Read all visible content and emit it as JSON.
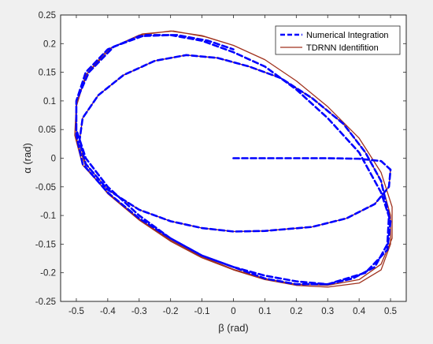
{
  "chart_data": {
    "type": "line",
    "title": "",
    "xlabel": "β (rad)",
    "ylabel": "α (rad)",
    "xlim": [
      -0.55,
      0.55
    ],
    "ylim": [
      -0.25,
      0.25
    ],
    "xticks": [
      -0.5,
      -0.4,
      -0.3,
      -0.2,
      -0.1,
      0,
      0.1,
      0.2,
      0.3,
      0.4,
      0.5
    ],
    "xtick_labels": [
      "-0.5",
      "-0.4",
      "-0.3",
      "-0.2",
      "-0.1",
      "0",
      "0.1",
      "0.2",
      "0.3",
      "0.4",
      "0.5"
    ],
    "yticks": [
      -0.25,
      -0.2,
      -0.15,
      -0.1,
      -0.05,
      0,
      0.05,
      0.1,
      0.15,
      0.2,
      0.25
    ],
    "ytick_labels": [
      "-0.25",
      "-0.2",
      "-0.15",
      "-0.1",
      "-0.05",
      "0",
      "0.05",
      "0.1",
      "0.15",
      "0.2",
      "0.25"
    ],
    "grid": false,
    "legend_position": "top-right",
    "background_color": "#f0f0f0",
    "axes_color": "#ffffff",
    "series": [
      {
        "name": "Numerical Integration",
        "color": "#0000ff",
        "line_style": "dashed",
        "points": [
          [
            0,
            0
          ],
          [
            0.1,
            0
          ],
          [
            0.2,
            0
          ],
          [
            0.3,
            0
          ],
          [
            0.4,
            -0.001
          ],
          [
            0.47,
            -0.005
          ],
          [
            0.5,
            -0.02
          ],
          [
            0.495,
            -0.05
          ],
          [
            0.45,
            -0.08
          ],
          [
            0.36,
            -0.105
          ],
          [
            0.25,
            -0.12
          ],
          [
            0.1,
            -0.127
          ],
          [
            0.0,
            -0.128
          ],
          [
            -0.1,
            -0.122
          ],
          [
            -0.2,
            -0.11
          ],
          [
            -0.3,
            -0.09
          ],
          [
            -0.4,
            -0.055
          ],
          [
            -0.47,
            -0.01
          ],
          [
            -0.49,
            0.03
          ],
          [
            -0.48,
            0.07
          ],
          [
            -0.43,
            0.11
          ],
          [
            -0.35,
            0.145
          ],
          [
            -0.25,
            0.17
          ],
          [
            -0.15,
            0.18
          ],
          [
            -0.05,
            0.175
          ],
          [
            0.05,
            0.16
          ],
          [
            0.15,
            0.14
          ],
          [
            0.25,
            0.105
          ],
          [
            0.35,
            0.06
          ],
          [
            0.42,
            0.01
          ],
          [
            0.47,
            -0.04
          ],
          [
            0.495,
            -0.1
          ],
          [
            0.49,
            -0.15
          ],
          [
            0.45,
            -0.19
          ],
          [
            0.38,
            -0.21
          ],
          [
            0.3,
            -0.22
          ],
          [
            0.2,
            -0.22
          ],
          [
            0.1,
            -0.21
          ],
          [
            0.0,
            -0.19
          ],
          [
            -0.1,
            -0.17
          ],
          [
            -0.2,
            -0.14
          ],
          [
            -0.3,
            -0.1
          ],
          [
            -0.4,
            -0.05
          ],
          [
            -0.47,
            0.0
          ],
          [
            -0.5,
            0.05
          ],
          [
            -0.5,
            0.1
          ],
          [
            -0.47,
            0.15
          ],
          [
            -0.4,
            0.19
          ],
          [
            -0.3,
            0.213
          ],
          [
            -0.2,
            0.215
          ],
          [
            -0.1,
            0.205
          ],
          [
            0.0,
            0.185
          ],
          [
            0.1,
            0.16
          ],
          [
            0.2,
            0.12
          ],
          [
            0.3,
            0.07
          ],
          [
            0.4,
            0.01
          ],
          [
            0.47,
            -0.06
          ],
          [
            0.5,
            -0.11
          ],
          [
            0.49,
            -0.16
          ],
          [
            0.42,
            -0.2
          ],
          [
            0.3,
            -0.22
          ],
          [
            0.2,
            -0.215
          ],
          [
            0.1,
            -0.205
          ],
          [
            0.0,
            -0.19
          ],
          [
            -0.1,
            -0.17
          ],
          [
            -0.2,
            -0.14
          ],
          [
            -0.3,
            -0.105
          ],
          [
            -0.4,
            -0.06
          ],
          [
            -0.48,
            -0.01
          ],
          [
            -0.5,
            0.04
          ],
          [
            -0.5,
            0.1
          ],
          [
            -0.46,
            0.15
          ],
          [
            -0.38,
            0.195
          ],
          [
            -0.28,
            0.215
          ],
          [
            -0.18,
            0.215
          ],
          [
            -0.08,
            0.205
          ],
          [
            0.0,
            0.19
          ]
        ]
      },
      {
        "name": "TDRNN Identifition",
        "color": "#a0321e",
        "line_style": "solid",
        "points": [
          [
            0.5,
            -0.02
          ],
          [
            0.495,
            -0.05
          ],
          [
            0.45,
            -0.08
          ],
          [
            0.36,
            -0.105
          ],
          [
            0.25,
            -0.12
          ],
          [
            0.1,
            -0.127
          ],
          [
            0.0,
            -0.128
          ],
          [
            -0.1,
            -0.122
          ],
          [
            -0.2,
            -0.11
          ],
          [
            -0.3,
            -0.09
          ],
          [
            -0.4,
            -0.055
          ],
          [
            -0.47,
            -0.01
          ],
          [
            -0.49,
            0.03
          ],
          [
            -0.48,
            0.07
          ],
          [
            -0.43,
            0.11
          ],
          [
            -0.35,
            0.145
          ],
          [
            -0.25,
            0.17
          ],
          [
            -0.15,
            0.18
          ],
          [
            -0.05,
            0.175
          ],
          [
            0.05,
            0.16
          ],
          [
            0.15,
            0.14
          ],
          [
            0.25,
            0.105
          ],
          [
            0.35,
            0.06
          ],
          [
            0.42,
            0.01
          ],
          [
            0.47,
            -0.04
          ],
          [
            0.5,
            -0.1
          ],
          [
            0.5,
            -0.15
          ],
          [
            0.47,
            -0.195
          ],
          [
            0.4,
            -0.218
          ],
          [
            0.3,
            -0.225
          ],
          [
            0.2,
            -0.222
          ],
          [
            0.1,
            -0.212
          ],
          [
            0.0,
            -0.195
          ],
          [
            -0.1,
            -0.174
          ],
          [
            -0.2,
            -0.145
          ],
          [
            -0.3,
            -0.108
          ],
          [
            -0.4,
            -0.062
          ],
          [
            -0.47,
            -0.015
          ],
          [
            -0.5,
            0.035
          ],
          [
            -0.5,
            0.09
          ],
          [
            -0.47,
            0.145
          ],
          [
            -0.4,
            0.19
          ],
          [
            -0.3,
            0.215
          ],
          [
            -0.2,
            0.222
          ],
          [
            -0.1,
            0.214
          ],
          [
            0.0,
            0.197
          ],
          [
            0.1,
            0.172
          ],
          [
            0.2,
            0.135
          ],
          [
            0.3,
            0.09
          ],
          [
            0.4,
            0.035
          ],
          [
            0.47,
            -0.025
          ],
          [
            0.505,
            -0.085
          ],
          [
            0.505,
            -0.14
          ],
          [
            0.47,
            -0.185
          ],
          [
            0.4,
            -0.212
          ],
          [
            0.3,
            -0.222
          ],
          [
            0.2,
            -0.22
          ],
          [
            0.1,
            -0.21
          ],
          [
            0.0,
            -0.194
          ],
          [
            -0.1,
            -0.172
          ],
          [
            -0.2,
            -0.143
          ],
          [
            -0.3,
            -0.106
          ],
          [
            -0.4,
            -0.06
          ],
          [
            -0.48,
            -0.012
          ],
          [
            -0.505,
            0.04
          ],
          [
            -0.5,
            0.095
          ],
          [
            -0.465,
            0.148
          ],
          [
            -0.39,
            0.192
          ],
          [
            -0.29,
            0.217
          ],
          [
            -0.19,
            0.222
          ],
          [
            -0.09,
            0.212
          ],
          [
            0.0,
            0.197
          ]
        ]
      }
    ]
  }
}
